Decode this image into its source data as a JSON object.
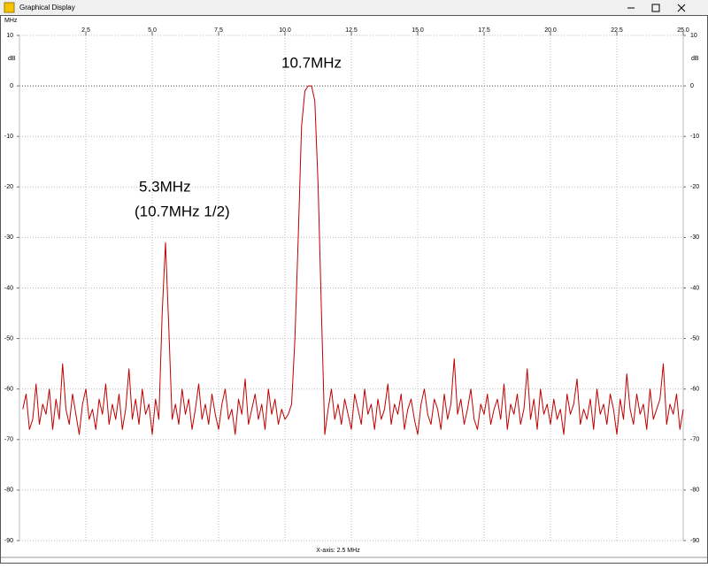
{
  "window": {
    "title": "Graphical Display"
  },
  "chart_data": {
    "type": "line",
    "xlabel": "MHz",
    "ylabel": "dB",
    "note": "X-axis: 2.5 MHz",
    "annotations": [
      "10.7MHz",
      "5.3MHz",
      "(10.7MHz 1/2)"
    ],
    "color": "#c00000",
    "grid": true,
    "xlim": [
      0,
      25
    ],
    "xticks": [
      2.5,
      {
        "value": 5,
        "label": "5.0"
      },
      7.5,
      {
        "value": 10,
        "label": "10.0"
      },
      12.5,
      {
        "value": 15,
        "label": "15.0"
      },
      17.5,
      {
        "value": 20,
        "label": "20.0"
      },
      22.5,
      {
        "value": 25,
        "label": "25.0"
      }
    ],
    "ylim": [
      -90,
      10
    ],
    "yticks": [
      10,
      0,
      -10,
      -20,
      -30,
      -40,
      -50,
      -60,
      -70,
      -80,
      -90
    ],
    "x": [
      0.125,
      0.25,
      0.375,
      0.5,
      0.625,
      0.75,
      0.875,
      1,
      1.125,
      1.25,
      1.375,
      1.5,
      1.625,
      1.75,
      1.875,
      2,
      2.125,
      2.25,
      2.375,
      2.5,
      2.625,
      2.75,
      2.875,
      3,
      3.125,
      3.25,
      3.375,
      3.5,
      3.625,
      3.75,
      3.875,
      4,
      4.125,
      4.25,
      4.375,
      4.5,
      4.625,
      4.75,
      4.875,
      5,
      5.125,
      5.25,
      5.375,
      5.5,
      5.625,
      5.75,
      5.875,
      6,
      6.125,
      6.25,
      6.375,
      6.5,
      6.625,
      6.75,
      6.875,
      7,
      7.125,
      7.25,
      7.375,
      7.5,
      7.625,
      7.75,
      7.875,
      8,
      8.125,
      8.25,
      8.375,
      8.5,
      8.625,
      8.75,
      8.875,
      9,
      9.125,
      9.25,
      9.375,
      9.5,
      9.625,
      9.75,
      9.875,
      10,
      10.125,
      10.25,
      10.375,
      10.5,
      10.625,
      10.75,
      10.875,
      11,
      11.125,
      11.25,
      11.375,
      11.5,
      11.625,
      11.75,
      11.875,
      12,
      12.125,
      12.25,
      12.375,
      12.5,
      12.625,
      12.75,
      12.875,
      13,
      13.125,
      13.25,
      13.375,
      13.5,
      13.625,
      13.75,
      13.875,
      14,
      14.125,
      14.25,
      14.375,
      14.5,
      14.625,
      14.75,
      14.875,
      15,
      15.125,
      15.25,
      15.375,
      15.5,
      15.625,
      15.75,
      15.875,
      16,
      16.125,
      16.25,
      16.375,
      16.5,
      16.625,
      16.75,
      16.875,
      17,
      17.125,
      17.25,
      17.375,
      17.5,
      17.625,
      17.75,
      17.875,
      18,
      18.125,
      18.25,
      18.375,
      18.5,
      18.625,
      18.75,
      18.875,
      19,
      19.125,
      19.25,
      19.375,
      19.5,
      19.625,
      19.75,
      19.875,
      20,
      20.125,
      20.25,
      20.375,
      20.5,
      20.625,
      20.75,
      20.875,
      21,
      21.125,
      21.25,
      21.375,
      21.5,
      21.625,
      21.75,
      21.875,
      22,
      22.125,
      22.25,
      22.375,
      22.5,
      22.625,
      22.75,
      22.875,
      23,
      23.125,
      23.25,
      23.375,
      23.5,
      23.625,
      23.75,
      23.875,
      24,
      24.125,
      24.25,
      24.375,
      24.5,
      24.625,
      24.75,
      24.875,
      25
    ],
    "values": [
      -64,
      -61,
      -68,
      -66,
      -59,
      -67,
      -63,
      -65,
      -60,
      -68,
      -62,
      -66,
      -55,
      -64,
      -67,
      -61,
      -65,
      -69,
      -63,
      -60,
      -66,
      -64,
      -68,
      -62,
      -65,
      -59,
      -67,
      -63,
      -66,
      -61,
      -68,
      -64,
      -56,
      -66,
      -62,
      -67,
      -60,
      -65,
      -63,
      -69,
      -62,
      -66,
      -45,
      -31,
      -48,
      -66,
      -63,
      -67,
      -60,
      -65,
      -62,
      -68,
      -64,
      -59,
      -66,
      -63,
      -67,
      -61,
      -65,
      -68,
      -63,
      -60,
      -66,
      -64,
      -69,
      -62,
      -65,
      -58,
      -67,
      -64,
      -61,
      -66,
      -63,
      -68,
      -60,
      -65,
      -62,
      -67,
      -64,
      -66,
      -65,
      -63,
      -50,
      -30,
      -8,
      -1,
      0,
      0,
      -3,
      -20,
      -45,
      -69,
      -64,
      -60,
      -66,
      -63,
      -67,
      -62,
      -65,
      -68,
      -61,
      -64,
      -67,
      -60,
      -65,
      -63,
      -68,
      -62,
      -66,
      -64,
      -59,
      -67,
      -63,
      -65,
      -61,
      -68,
      -64,
      -62,
      -66,
      -69,
      -63,
      -60,
      -65,
      -67,
      -62,
      -64,
      -68,
      -61,
      -66,
      -63,
      -54,
      -65,
      -62,
      -67,
      -64,
      -60,
      -66,
      -68,
      -63,
      -65,
      -61,
      -67,
      -64,
      -62,
      -66,
      -59,
      -68,
      -63,
      -65,
      -61,
      -67,
      -64,
      -56,
      -66,
      -62,
      -68,
      -60,
      -65,
      -63,
      -67,
      -62,
      -66,
      -64,
      -69,
      -61,
      -65,
      -63,
      -58,
      -67,
      -64,
      -66,
      -62,
      -68,
      -60,
      -65,
      -63,
      -67,
      -61,
      -64,
      -69,
      -62,
      -66,
      -57,
      -64,
      -67,
      -61,
      -65,
      -63,
      -68,
      -60,
      -66,
      -64,
      -62,
      -55,
      -67,
      -63,
      -65,
      -61,
      -68,
      -64
    ]
  }
}
